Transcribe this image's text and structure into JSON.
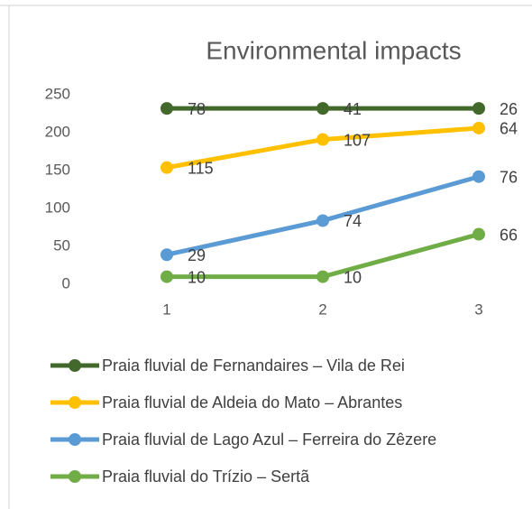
{
  "chart_data": {
    "type": "line",
    "stacked": true,
    "title": "Environmental impacts",
    "x": [
      1,
      2,
      3
    ],
    "xlim": [
      1,
      3
    ],
    "ylim": [
      0,
      250
    ],
    "yticks": [
      0,
      50,
      100,
      150,
      200,
      250
    ],
    "grid": false,
    "legend": "bottom",
    "series": [
      {
        "name": "Praia fluvial de Fernandaires – Vila de Rei",
        "color": "#43682b",
        "values": [
          78,
          41,
          26
        ]
      },
      {
        "name": "Praia fluvial de Aldeia do Mato – Abrantes",
        "color": "#ffc000",
        "values": [
          115,
          107,
          64
        ]
      },
      {
        "name": "Praia fluvial de Lago Azul – Ferreira do Zêzere",
        "color": "#5b9bd5",
        "values": [
          29,
          74,
          76
        ]
      },
      {
        "name": "Praia fluvial do Trízio – Sertã",
        "color": "#70ad47",
        "values": [
          10,
          10,
          66
        ]
      }
    ]
  }
}
